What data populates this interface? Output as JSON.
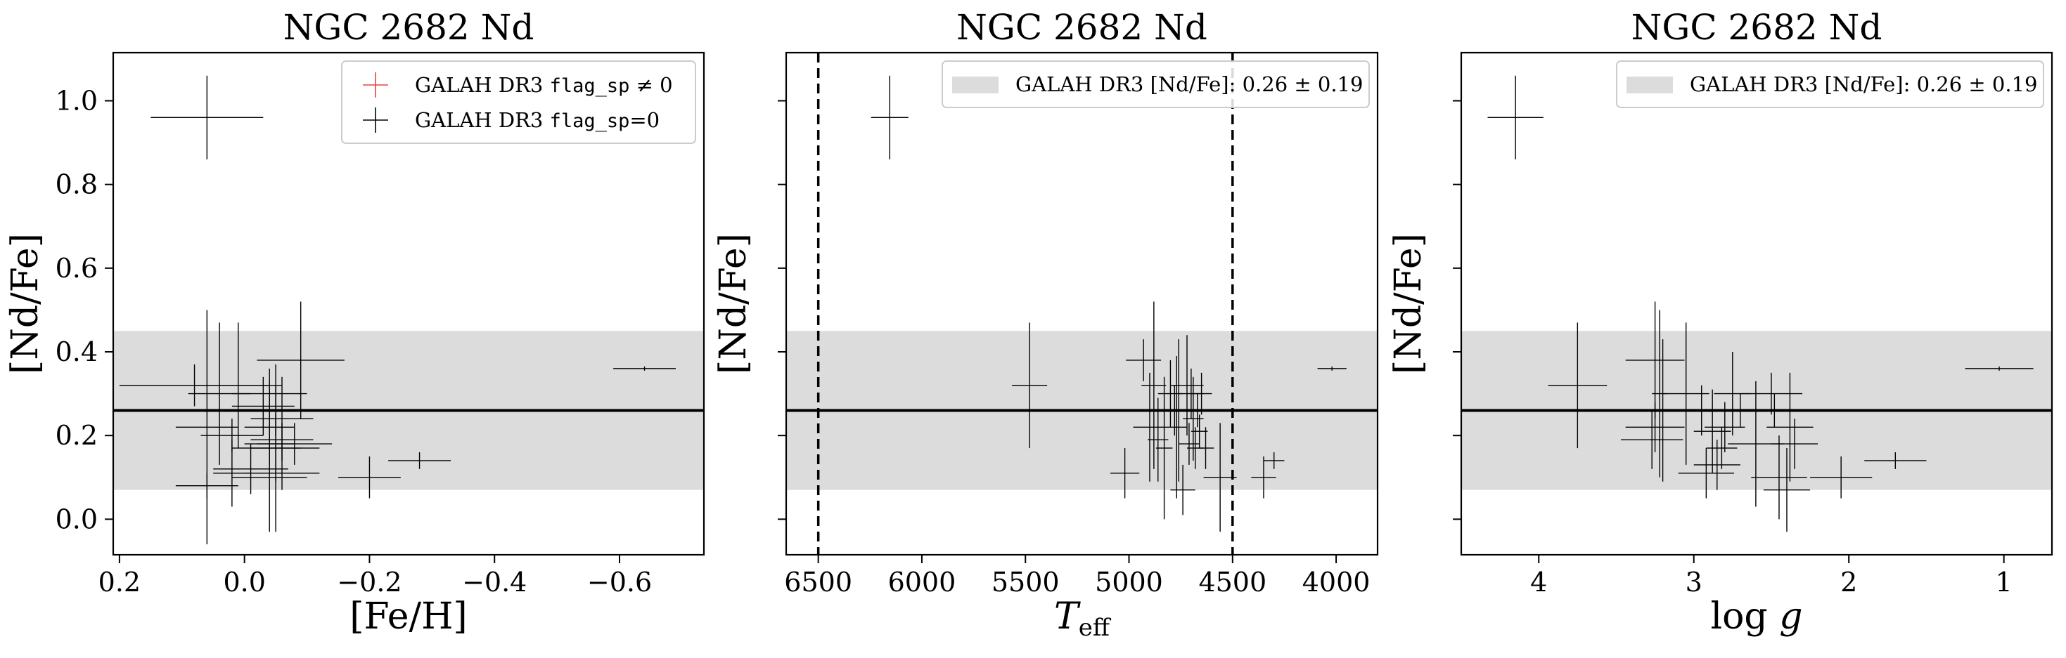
{
  "colors": {
    "band": "#dcdcdc",
    "errorbar": "#000000",
    "flag_nonzero": "#e8423f",
    "mean_line": "#000000"
  },
  "legend_text": {
    "galah_prefix": "GALAH DR3 ",
    "flag_name": "flag_sp",
    "flag_nonzero_suffix": " ≠ 0",
    "flag_zero_suffix": "=0",
    "band_label": "GALAH DR3 [Nd/Fe]: 0.26 ± 0.19"
  },
  "chart_data": [
    {
      "type": "scatter",
      "title": "NGC 2682 Nd",
      "xlabel": "[Fe/H]",
      "ylabel": "[Nd/Fe]",
      "xlim": [
        0.21,
        -0.735
      ],
      "ylim": [
        -0.085,
        1.115
      ],
      "xticks": [
        {
          "v": 0.2,
          "label": "0.2"
        },
        {
          "v": 0.0,
          "label": "0.0"
        },
        {
          "v": -0.2,
          "label": "−0.2"
        },
        {
          "v": -0.4,
          "label": "−0.4"
        },
        {
          "v": -0.6,
          "label": "−0.6"
        }
      ],
      "yticks": [
        {
          "v": 0.0,
          "label": "0.0"
        },
        {
          "v": 0.2,
          "label": "0.2"
        },
        {
          "v": 0.4,
          "label": "0.4"
        },
        {
          "v": 0.6,
          "label": "0.6"
        },
        {
          "v": 0.8,
          "label": "0.8"
        },
        {
          "v": 1.0,
          "label": "1.0"
        }
      ],
      "show_yticklabels": true,
      "mean": 0.26,
      "band": [
        0.07,
        0.45
      ],
      "vlines": [],
      "legend": "flags",
      "legend_position": "upper right",
      "points": [
        {
          "x": 0.06,
          "y": 0.96,
          "xerr": 0.09,
          "yerr": 0.1
        },
        {
          "x": 0.08,
          "y": 0.32,
          "xerr": 0.12,
          "yerr": 0.05
        },
        {
          "x": 0.06,
          "y": 0.22,
          "xerr": 0.05,
          "yerr": 0.28
        },
        {
          "x": 0.04,
          "y": 0.3,
          "xerr": 0.05,
          "yerr": 0.17
        },
        {
          "x": 0.02,
          "y": 0.2,
          "xerr": 0.05,
          "yerr": 0.04
        },
        {
          "x": 0.01,
          "y": 0.32,
          "xerr": 0.07,
          "yerr": 0.15
        },
        {
          "x": 0.06,
          "y": 0.08,
          "xerr": 0.05,
          "yerr": 0.03
        },
        {
          "x": 0.02,
          "y": 0.11,
          "xerr": 0.03,
          "yerr": 0.08
        },
        {
          "x": -0.01,
          "y": 0.12,
          "xerr": 0.06,
          "yerr": 0.06
        },
        {
          "x": -0.04,
          "y": 0.3,
          "xerr": 0.06,
          "yerr": 0.03
        },
        {
          "x": -0.03,
          "y": 0.27,
          "xerr": 0.05,
          "yerr": 0.07
        },
        {
          "x": -0.04,
          "y": 0.26,
          "xerr": 0.05,
          "yerr": 0.1
        },
        {
          "x": -0.04,
          "y": 0.22,
          "xerr": 0.04,
          "yerr": 0.06
        },
        {
          "x": -0.05,
          "y": 0.17,
          "xerr": 0.07,
          "yerr": 0.2
        },
        {
          "x": -0.05,
          "y": 0.26,
          "xerr": 0.07,
          "yerr": 0.06
        },
        {
          "x": -0.04,
          "y": 0.18,
          "xerr": 0.04,
          "yerr": 0.05
        },
        {
          "x": -0.06,
          "y": 0.11,
          "xerr": 0.06,
          "yerr": 0.04
        },
        {
          "x": -0.06,
          "y": 0.19,
          "xerr": 0.05,
          "yerr": 0.04
        },
        {
          "x": -0.06,
          "y": 0.24,
          "xerr": 0.05,
          "yerr": 0.1
        },
        {
          "x": -0.04,
          "y": 0.1,
          "xerr": 0.06,
          "yerr": 0.13
        },
        {
          "x": -0.05,
          "y": 0.17,
          "xerr": 0.04,
          "yerr": 0.08
        },
        {
          "x": -0.08,
          "y": 0.18,
          "xerr": 0.06,
          "yerr": 0.05
        },
        {
          "x": -0.09,
          "y": 0.38,
          "xerr": 0.07,
          "yerr": 0.14
        },
        {
          "x": -0.2,
          "y": 0.1,
          "xerr": 0.05,
          "yerr": 0.05
        },
        {
          "x": -0.28,
          "y": 0.14,
          "xerr": 0.05,
          "yerr": 0.02
        },
        {
          "x": -0.64,
          "y": 0.36,
          "xerr": 0.05,
          "yerr": 0.005
        }
      ]
    },
    {
      "type": "scatter",
      "title": "NGC 2682 Nd",
      "xlabel": "T_eff",
      "ylabel": "[Nd/Fe]",
      "xlim": [
        6655,
        3800
      ],
      "ylim": [
        -0.085,
        1.115
      ],
      "xticks": [
        {
          "v": 6500,
          "label": "6500"
        },
        {
          "v": 6000,
          "label": "6000"
        },
        {
          "v": 5500,
          "label": "5500"
        },
        {
          "v": 5000,
          "label": "5000"
        },
        {
          "v": 4500,
          "label": "4500"
        },
        {
          "v": 4000,
          "label": "4000"
        }
      ],
      "yticks": [
        {
          "v": 0.0,
          "label": ""
        },
        {
          "v": 0.2,
          "label": ""
        },
        {
          "v": 0.4,
          "label": ""
        },
        {
          "v": 0.6,
          "label": ""
        },
        {
          "v": 0.8,
          "label": ""
        },
        {
          "v": 1.0,
          "label": ""
        }
      ],
      "show_yticklabels": false,
      "mean": 0.26,
      "band": [
        0.07,
        0.45
      ],
      "vlines": [
        6500,
        4500
      ],
      "legend": "band",
      "legend_position": "upper right",
      "points": [
        {
          "x": 6155,
          "y": 0.96,
          "xerr": 90,
          "yerr": 0.1
        },
        {
          "x": 5480,
          "y": 0.32,
          "xerr": 85,
          "yerr": 0.15
        },
        {
          "x": 5020,
          "y": 0.11,
          "xerr": 70,
          "yerr": 0.06
        },
        {
          "x": 4930,
          "y": 0.38,
          "xerr": 85,
          "yerr": 0.05
        },
        {
          "x": 4900,
          "y": 0.22,
          "xerr": 80,
          "yerr": 0.13
        },
        {
          "x": 4880,
          "y": 0.32,
          "xerr": 60,
          "yerr": 0.2
        },
        {
          "x": 4860,
          "y": 0.19,
          "xerr": 50,
          "yerr": 0.1
        },
        {
          "x": 4830,
          "y": 0.17,
          "xerr": 40,
          "yerr": 0.17
        },
        {
          "x": 4800,
          "y": 0.3,
          "xerr": 60,
          "yerr": 0.08
        },
        {
          "x": 4780,
          "y": 0.26,
          "xerr": 50,
          "yerr": 0.06
        },
        {
          "x": 4770,
          "y": 0.22,
          "xerr": 50,
          "yerr": 0.17
        },
        {
          "x": 4760,
          "y": 0.26,
          "xerr": 50,
          "yerr": 0.17
        },
        {
          "x": 4740,
          "y": 0.07,
          "xerr": 60,
          "yerr": 0.06
        },
        {
          "x": 4720,
          "y": 0.32,
          "xerr": 80,
          "yerr": 0.12
        },
        {
          "x": 4710,
          "y": 0.18,
          "xerr": 50,
          "yerr": 0.05
        },
        {
          "x": 4700,
          "y": 0.3,
          "xerr": 60,
          "yerr": 0.06
        },
        {
          "x": 4690,
          "y": 0.24,
          "xerr": 50,
          "yerr": 0.1
        },
        {
          "x": 4680,
          "y": 0.17,
          "xerr": 40,
          "yerr": 0.05
        },
        {
          "x": 4670,
          "y": 0.26,
          "xerr": 60,
          "yerr": 0.04
        },
        {
          "x": 4660,
          "y": 0.21,
          "xerr": 40,
          "yerr": 0.04
        },
        {
          "x": 4650,
          "y": 0.3,
          "xerr": 50,
          "yerr": 0.05
        },
        {
          "x": 4630,
          "y": 0.17,
          "xerr": 40,
          "yerr": 0.05
        },
        {
          "x": 4560,
          "y": 0.1,
          "xerr": 80,
          "yerr": 0.13
        },
        {
          "x": 4350,
          "y": 0.1,
          "xerr": 60,
          "yerr": 0.05
        },
        {
          "x": 4300,
          "y": 0.14,
          "xerr": 50,
          "yerr": 0.02
        },
        {
          "x": 4020,
          "y": 0.36,
          "xerr": 70,
          "yerr": 0.005
        }
      ]
    },
    {
      "type": "scatter",
      "title": "NGC 2682 Nd",
      "xlabel": "log g",
      "ylabel": "[Nd/Fe]",
      "xlim": [
        4.5,
        0.69
      ],
      "ylim": [
        -0.085,
        1.115
      ],
      "xticks": [
        {
          "v": 4,
          "label": "4"
        },
        {
          "v": 3,
          "label": "3"
        },
        {
          "v": 2,
          "label": "2"
        },
        {
          "v": 1,
          "label": "1"
        }
      ],
      "yticks": [
        {
          "v": 0.0,
          "label": ""
        },
        {
          "v": 0.2,
          "label": ""
        },
        {
          "v": 0.4,
          "label": ""
        },
        {
          "v": 0.6,
          "label": ""
        },
        {
          "v": 0.8,
          "label": ""
        },
        {
          "v": 1.0,
          "label": ""
        }
      ],
      "show_yticklabels": false,
      "mean": 0.26,
      "band": [
        0.07,
        0.45
      ],
      "vlines": [],
      "legend": "band",
      "legend_position": "upper right",
      "points": [
        {
          "x": 4.15,
          "y": 0.96,
          "xerr": 0.18,
          "yerr": 0.1
        },
        {
          "x": 3.75,
          "y": 0.32,
          "xerr": 0.19,
          "yerr": 0.15
        },
        {
          "x": 3.25,
          "y": 0.38,
          "xerr": 0.19,
          "yerr": 0.14
        },
        {
          "x": 3.25,
          "y": 0.22,
          "xerr": 0.19,
          "yerr": 0.06
        },
        {
          "x": 3.27,
          "y": 0.19,
          "xerr": 0.2,
          "yerr": 0.07
        },
        {
          "x": 3.22,
          "y": 0.3,
          "xerr": 0.05,
          "yerr": 0.2
        },
        {
          "x": 3.2,
          "y": 0.26,
          "xerr": 0.06,
          "yerr": 0.17
        },
        {
          "x": 3.05,
          "y": 0.3,
          "xerr": 0.15,
          "yerr": 0.17
        },
        {
          "x": 2.95,
          "y": 0.26,
          "xerr": 0.17,
          "yerr": 0.06
        },
        {
          "x": 2.92,
          "y": 0.11,
          "xerr": 0.18,
          "yerr": 0.06
        },
        {
          "x": 2.88,
          "y": 0.21,
          "xerr": 0.12,
          "yerr": 0.1
        },
        {
          "x": 2.85,
          "y": 0.13,
          "xerr": 0.15,
          "yerr": 0.06
        },
        {
          "x": 2.82,
          "y": 0.17,
          "xerr": 0.1,
          "yerr": 0.05
        },
        {
          "x": 2.8,
          "y": 0.22,
          "xerr": 0.13,
          "yerr": 0.06
        },
        {
          "x": 2.75,
          "y": 0.3,
          "xerr": 0.12,
          "yerr": 0.1
        },
        {
          "x": 2.7,
          "y": 0.26,
          "xerr": 0.14,
          "yerr": 0.04
        },
        {
          "x": 2.6,
          "y": 0.18,
          "xerr": 0.18,
          "yerr": 0.15
        },
        {
          "x": 2.5,
          "y": 0.3,
          "xerr": 0.2,
          "yerr": 0.05
        },
        {
          "x": 2.48,
          "y": 0.26,
          "xerr": 0.18,
          "yerr": 0.04
        },
        {
          "x": 2.45,
          "y": 0.1,
          "xerr": 0.18,
          "yerr": 0.1
        },
        {
          "x": 2.4,
          "y": 0.07,
          "xerr": 0.15,
          "yerr": 0.1
        },
        {
          "x": 2.38,
          "y": 0.22,
          "xerr": 0.15,
          "yerr": 0.13
        },
        {
          "x": 2.35,
          "y": 0.18,
          "xerr": 0.15,
          "yerr": 0.06
        },
        {
          "x": 2.05,
          "y": 0.1,
          "xerr": 0.2,
          "yerr": 0.05
        },
        {
          "x": 1.7,
          "y": 0.14,
          "xerr": 0.2,
          "yerr": 0.02
        },
        {
          "x": 1.03,
          "y": 0.36,
          "xerr": 0.22,
          "yerr": 0.005
        }
      ]
    }
  ]
}
